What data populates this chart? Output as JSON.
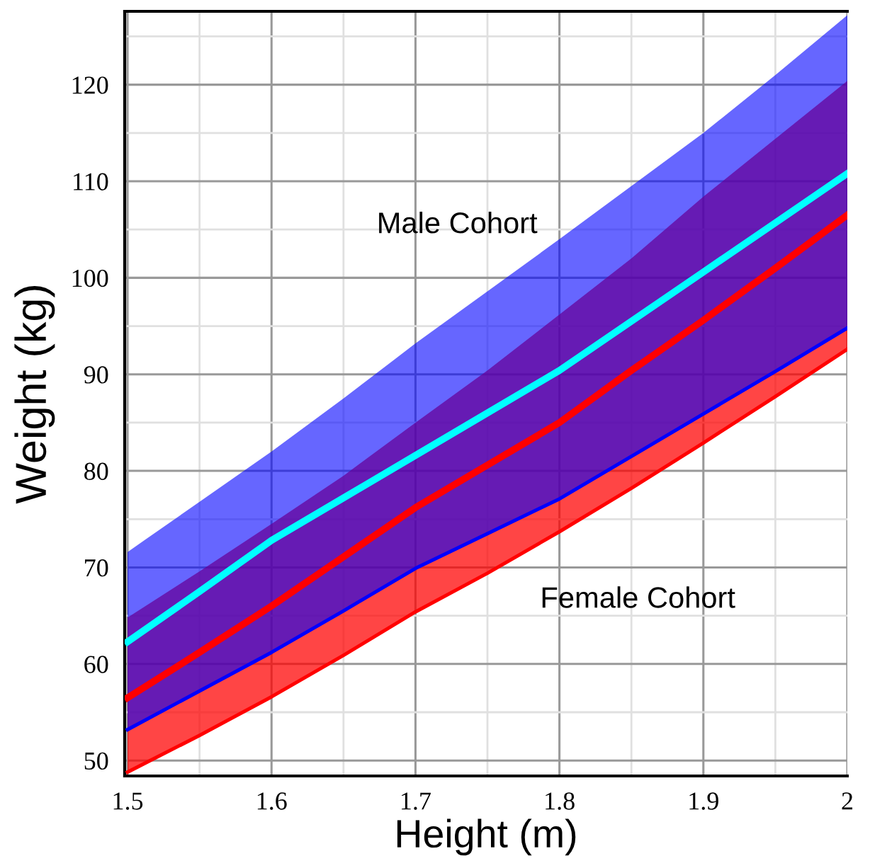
{
  "chart_data": {
    "type": "line",
    "xlabel": "Height (m)",
    "ylabel": "Weight (kg)",
    "x": [
      1.5,
      1.55,
      1.6,
      1.65,
      1.7,
      1.75,
      1.8,
      1.85,
      1.9,
      1.95,
      2.0
    ],
    "series": [
      {
        "color": "#ff0000",
        "values": [
          48.8,
          52.6,
          56.6,
          60.9,
          65.4,
          69.4,
          73.7,
          78.2,
          82.9,
          87.7,
          92.6
        ],
        "lower": [
          48.8,
          52.6,
          56.6,
          60.9,
          65.4,
          69.4,
          73.7,
          78.2,
          82.9,
          87.7,
          92.6
        ],
        "upper": [
          64.8,
          69.6,
          74.5,
          79.5,
          85.0,
          90.4,
          96.2,
          102.0,
          108.4,
          114.4,
          120.4
        ]
      },
      {
        "color": "#0000ff",
        "values": [
          53.2,
          57.2,
          61.2,
          65.5,
          69.9,
          73.5,
          77.1,
          81.5,
          85.9,
          90.3,
          94.8
        ],
        "lower": [
          53.2,
          57.2,
          61.2,
          65.5,
          69.9,
          73.5,
          77.1,
          81.5,
          85.9,
          90.3,
          94.8
        ],
        "upper": [
          71.6,
          76.8,
          82.0,
          87.5,
          93.2,
          98.6,
          104.0,
          109.5,
          115.0,
          121.0,
          127.2
        ]
      },
      {
        "color": "#ff0000",
        "values": [
          56.5,
          61.2,
          66.0,
          71.1,
          76.2,
          80.6,
          85.0,
          90.4,
          95.6,
          101.0,
          106.5
        ]
      },
      {
        "color": "#00ffff",
        "values": [
          62.3,
          67.5,
          72.8,
          77.2,
          81.6,
          86.0,
          90.4,
          95.5,
          100.6,
          105.7,
          110.8
        ]
      }
    ],
    "annotations": [
      "Male Cohort",
      "Female Cohort"
    ],
    "xlim": [
      1.498,
      2.0
    ],
    "ylim": [
      48.4,
      127.6
    ],
    "xticks": [
      1.5,
      1.6,
      1.7,
      1.8,
      1.9,
      {
        "value": 2.0,
        "label": "2"
      }
    ],
    "yticks": [
      50,
      60,
      70,
      80,
      90,
      100,
      110,
      120
    ],
    "grid": true,
    "legend": false
  }
}
